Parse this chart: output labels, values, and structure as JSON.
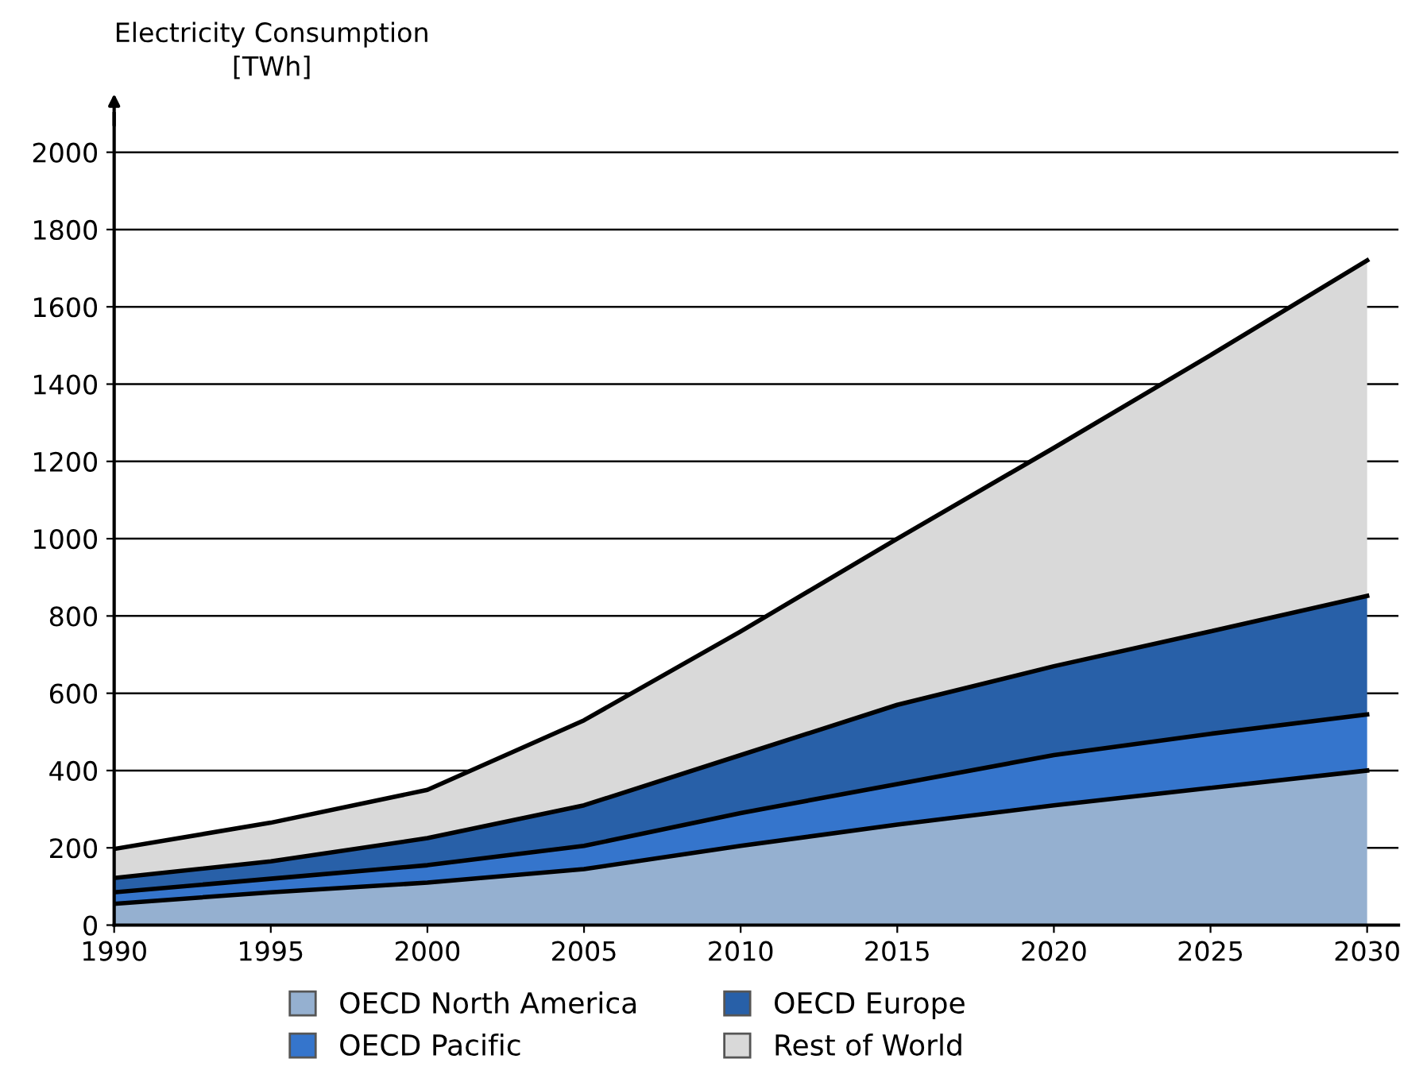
{
  "chart_data": {
    "type": "area",
    "stacked": true,
    "ylabel": "Electricity Consumption\n[TWh]",
    "x": [
      1990,
      1995,
      2000,
      2005,
      2010,
      2015,
      2020,
      2025,
      2030
    ],
    "series": [
      {
        "name": "OECD North America",
        "color": "#95b0d0",
        "values": [
          55,
          85,
          110,
          145,
          205,
          260,
          310,
          355,
          400
        ]
      },
      {
        "name": "OECD Pacific",
        "color": "#3575cc",
        "values": [
          30,
          35,
          45,
          60,
          85,
          105,
          130,
          140,
          145
        ]
      },
      {
        "name": "OECD Europe",
        "color": "#2860a8",
        "values": [
          37,
          45,
          70,
          105,
          150,
          205,
          230,
          265,
          307
        ]
      },
      {
        "name": "Rest of World",
        "color": "#d9d9d9",
        "values": [
          75,
          100,
          125,
          220,
          320,
          430,
          565,
          715,
          868
        ]
      }
    ],
    "xlim": [
      1990,
      2031
    ],
    "xticks": [
      1990,
      1995,
      2000,
      2005,
      2010,
      2015,
      2020,
      2025,
      2030
    ],
    "ylim": [
      0,
      2100
    ],
    "yticks": [
      0,
      200,
      400,
      600,
      800,
      1000,
      1200,
      1400,
      1600,
      1800,
      2000
    ],
    "grid": "y",
    "legend": "bottom"
  }
}
